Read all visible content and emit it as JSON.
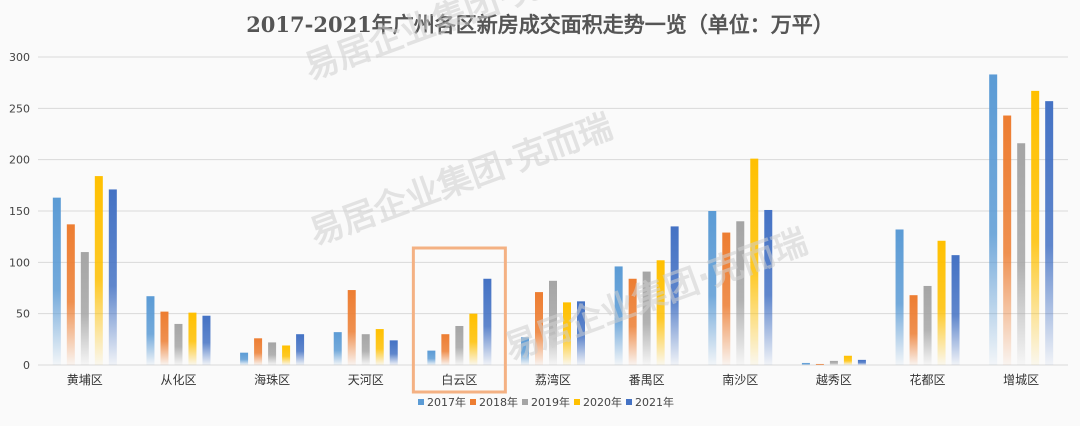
{
  "chart_data": {
    "type": "bar",
    "title": "2017-2021年广州各区新房成交面积走势一览（单位：万平）",
    "categories": [
      "黄埔区",
      "从化区",
      "海珠区",
      "天河区",
      "白云区",
      "荔湾区",
      "番禺区",
      "南沙区",
      "越秀区",
      "花都区",
      "增城区"
    ],
    "series": [
      {
        "name": "2017年",
        "color": "#5b9bd5",
        "values": [
          163,
          67,
          12,
          32,
          14,
          27,
          96,
          150,
          2,
          132,
          283
        ]
      },
      {
        "name": "2018年",
        "color": "#ed7d31",
        "values": [
          137,
          52,
          26,
          73,
          30,
          71,
          84,
          129,
          1,
          68,
          243
        ]
      },
      {
        "name": "2019年",
        "color": "#a5a5a5",
        "values": [
          110,
          40,
          22,
          30,
          38,
          82,
          91,
          140,
          4,
          77,
          216
        ]
      },
      {
        "name": "2020年",
        "color": "#ffc000",
        "values": [
          184,
          51,
          19,
          35,
          50,
          61,
          102,
          201,
          9,
          121,
          267
        ]
      },
      {
        "name": "2021年",
        "color": "#4472c4",
        "values": [
          171,
          48,
          30,
          24,
          84,
          62,
          135,
          151,
          5,
          107,
          257
        ]
      }
    ],
    "ylim": [
      0,
      300
    ],
    "yticks": [
      0,
      50,
      100,
      150,
      200,
      250,
      300
    ],
    "grid": true,
    "legend_position": "bottom",
    "highlight_category": "白云区",
    "highlight_color": "#f4b183"
  },
  "watermark": {
    "text": "易居企业集团·克而瑞"
  }
}
